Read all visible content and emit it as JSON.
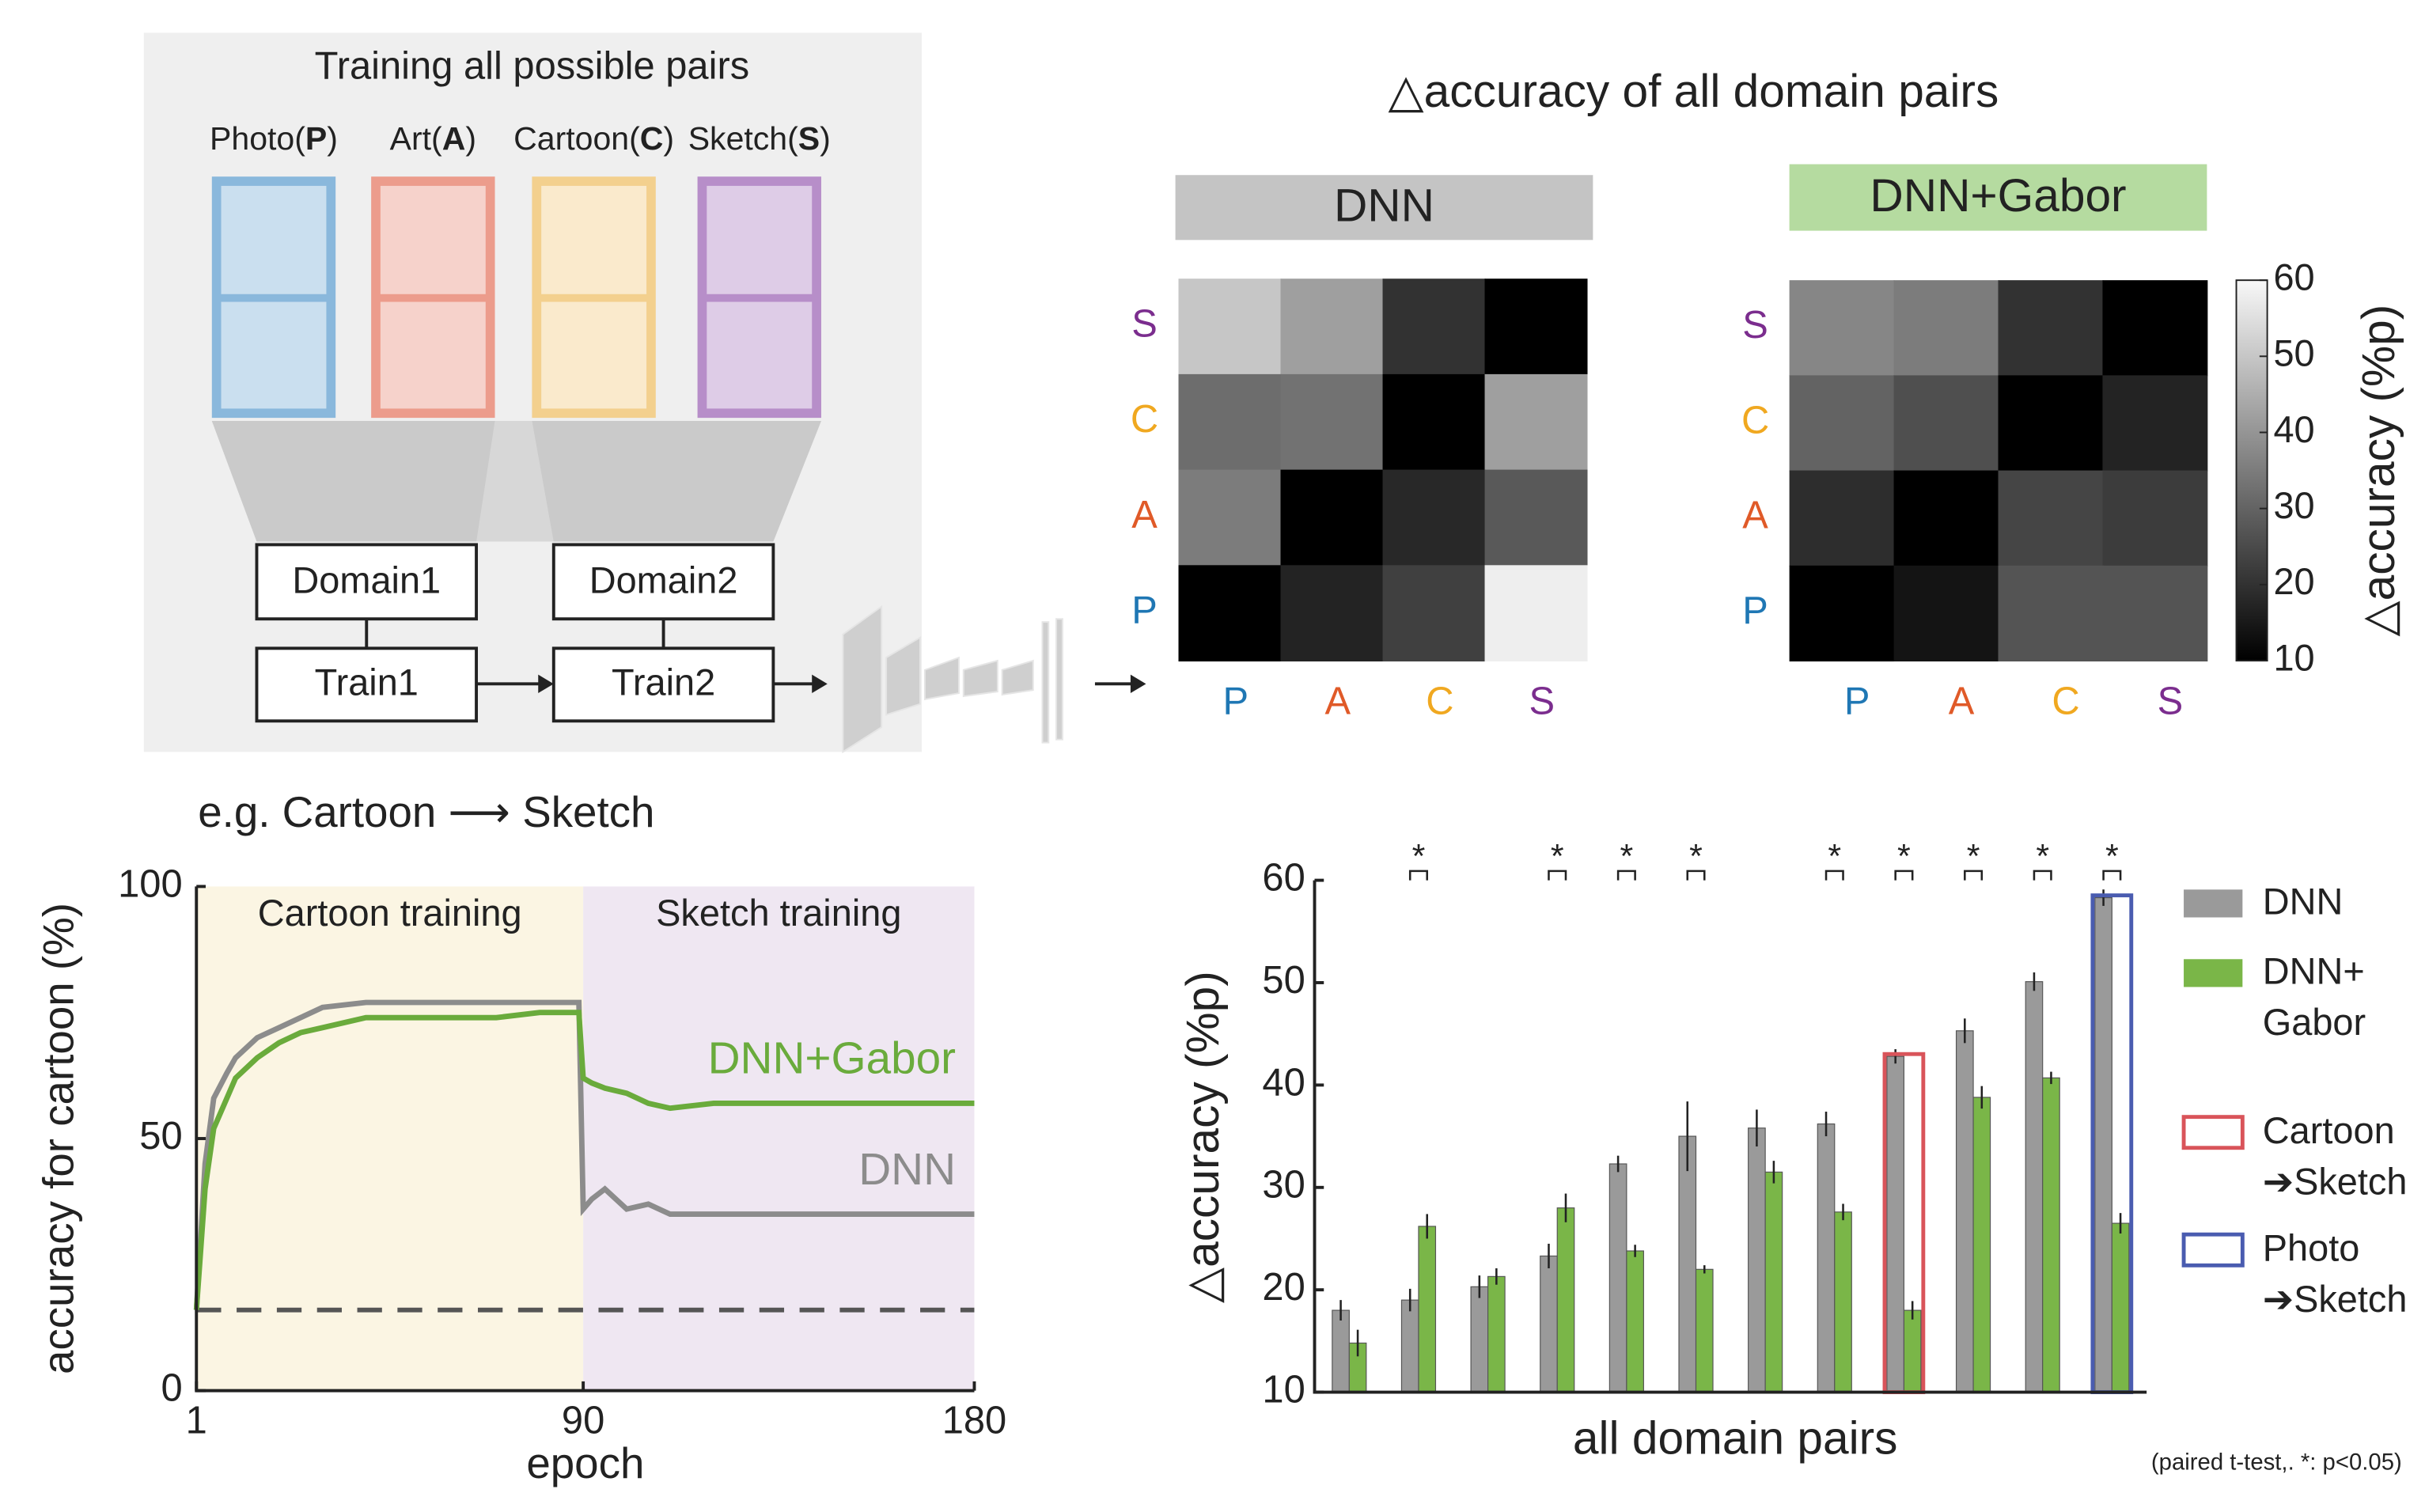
{
  "diagram": {
    "title": "Training all possible pairs",
    "domains": [
      {
        "label": [
          "Photo(",
          "P",
          ")"
        ],
        "color": "#8ab8dc"
      },
      {
        "label": [
          "Art(",
          "A",
          ")"
        ],
        "color": "#ec9c8c"
      },
      {
        "label": [
          "Cartoon(",
          "C",
          ")"
        ],
        "color": "#f3d08e"
      },
      {
        "label": [
          "Sketch(",
          "S",
          ")"
        ],
        "color": "#b78ec9"
      }
    ],
    "domain1": "Domain1",
    "domain2": "Domain2",
    "train1": "Train1",
    "train2": "Train2"
  },
  "heatmap_title": "△accuracy of all domain pairs",
  "chart_data": [
    {
      "type": "heatmap",
      "title": "DNN",
      "title_color": "#c4c4c4",
      "rows": [
        "S",
        "C",
        "A",
        "P"
      ],
      "columns": [
        "P",
        "A",
        "C",
        "S"
      ],
      "row_colors": [
        "#7b2d8e",
        "#f0a820",
        "#e05a28",
        "#1f77b4"
      ],
      "column_colors": [
        "#1f77b4",
        "#e05a28",
        "#f0a820",
        "#7b2d8e"
      ],
      "values": [
        [
          50,
          42,
          20,
          10
        ],
        [
          32,
          33,
          10,
          42
        ],
        [
          35,
          10,
          18,
          28
        ],
        [
          10,
          17,
          23,
          58
        ]
      ],
      "clim": [
        10,
        60
      ]
    },
    {
      "type": "heatmap",
      "title": "DNN+Gabor",
      "title_color": "#b5dba0",
      "rows": [
        "S",
        "C",
        "A",
        "P"
      ],
      "columns": [
        "P",
        "A",
        "C",
        "S"
      ],
      "row_colors": [
        "#7b2d8e",
        "#f0a820",
        "#e05a28",
        "#1f77b4"
      ],
      "column_colors": [
        "#1f77b4",
        "#e05a28",
        "#f0a820",
        "#7b2d8e"
      ],
      "values": [
        [
          37,
          35,
          20,
          10
        ],
        [
          30,
          26,
          10,
          17
        ],
        [
          19,
          10,
          24,
          22
        ],
        [
          10,
          14,
          27,
          27
        ]
      ],
      "clim": [
        10,
        60
      ],
      "colorbar": {
        "ticks": [
          10,
          20,
          30,
          40,
          50,
          60
        ],
        "label": "△accuracy (%p)"
      }
    },
    {
      "type": "line",
      "title": "e.g. Cartoon ⟶ Sketch",
      "x_label": "epoch",
      "y_label": "accuracy for cartoon (%)",
      "xlim": [
        1,
        180
      ],
      "xticks": [
        1,
        90,
        180
      ],
      "ylim": [
        0,
        100
      ],
      "yticks": [
        0,
        50,
        100
      ],
      "phases": [
        {
          "label": "Cartoon training",
          "start": 1,
          "end": 90,
          "color": "#fbf5e3"
        },
        {
          "label": "Sketch training",
          "start": 90,
          "end": 180,
          "color": "#efe7f2"
        }
      ],
      "reference_line": 16,
      "x": [
        1,
        3,
        5,
        8,
        10,
        15,
        20,
        25,
        30,
        40,
        50,
        60,
        70,
        80,
        89,
        90,
        92,
        95,
        100,
        105,
        110,
        120,
        130,
        140,
        150,
        160,
        170,
        180
      ],
      "series": [
        {
          "name": "DNN",
          "color": "#8c8c8c",
          "values": [
            16,
            45,
            58,
            63,
            66,
            70,
            72,
            74,
            76,
            77,
            77,
            77,
            77,
            77,
            77,
            36,
            38,
            40,
            36,
            37,
            35,
            35,
            35,
            35,
            35,
            35,
            35,
            35
          ]
        },
        {
          "name": "DNN+Gabor",
          "color": "#6aab3c",
          "values": [
            16,
            40,
            52,
            58,
            62,
            66,
            69,
            71,
            72,
            74,
            74,
            74,
            74,
            75,
            75,
            62,
            61,
            60,
            59,
            57,
            56,
            57,
            57,
            57,
            57,
            57,
            57,
            57
          ]
        }
      ]
    },
    {
      "type": "bar",
      "x_label": "all domain pairs",
      "y_label": "△accuracy (%p)",
      "ylim": [
        10,
        60
      ],
      "yticks": [
        10,
        20,
        30,
        40,
        50,
        60
      ],
      "categories": [
        null,
        null,
        null,
        null,
        null,
        null,
        null,
        null,
        null,
        null,
        null,
        null
      ],
      "series": [
        {
          "name": "DNN",
          "color": "#9a9a9a",
          "values": [
            18,
            19,
            20.3,
            23.3,
            32.3,
            35,
            35.8,
            36.2,
            42.8,
            45.3,
            50.1,
            58.3
          ],
          "errors": [
            1,
            1.1,
            1.1,
            1.2,
            0.8,
            3.4,
            1.8,
            1.2,
            0.7,
            1.2,
            0.9,
            0.8
          ]
        },
        {
          "name": "DNN+ Gabor",
          "color": "#7ab648",
          "values": [
            14.8,
            26.2,
            21.3,
            28,
            23.8,
            22,
            31.5,
            27.6,
            18,
            38.8,
            40.7,
            26.5
          ],
          "errors": [
            1.3,
            1.2,
            0.8,
            1.4,
            0.6,
            0.4,
            1.1,
            0.8,
            0.9,
            1.1,
            0.6,
            1
          ]
        }
      ],
      "highlights": [
        {
          "index": 8,
          "label": "Cartoon ➔Sketch",
          "color": "#d9545a"
        },
        {
          "index": 11,
          "label": "Photo ➔Sketch",
          "color": "#4a5cb0"
        }
      ],
      "significance_marker": "*",
      "significant": [
        1,
        3,
        4,
        5,
        7,
        8,
        9,
        10,
        11
      ],
      "note": "(paired t-test,. *: p<0.05)"
    }
  ]
}
